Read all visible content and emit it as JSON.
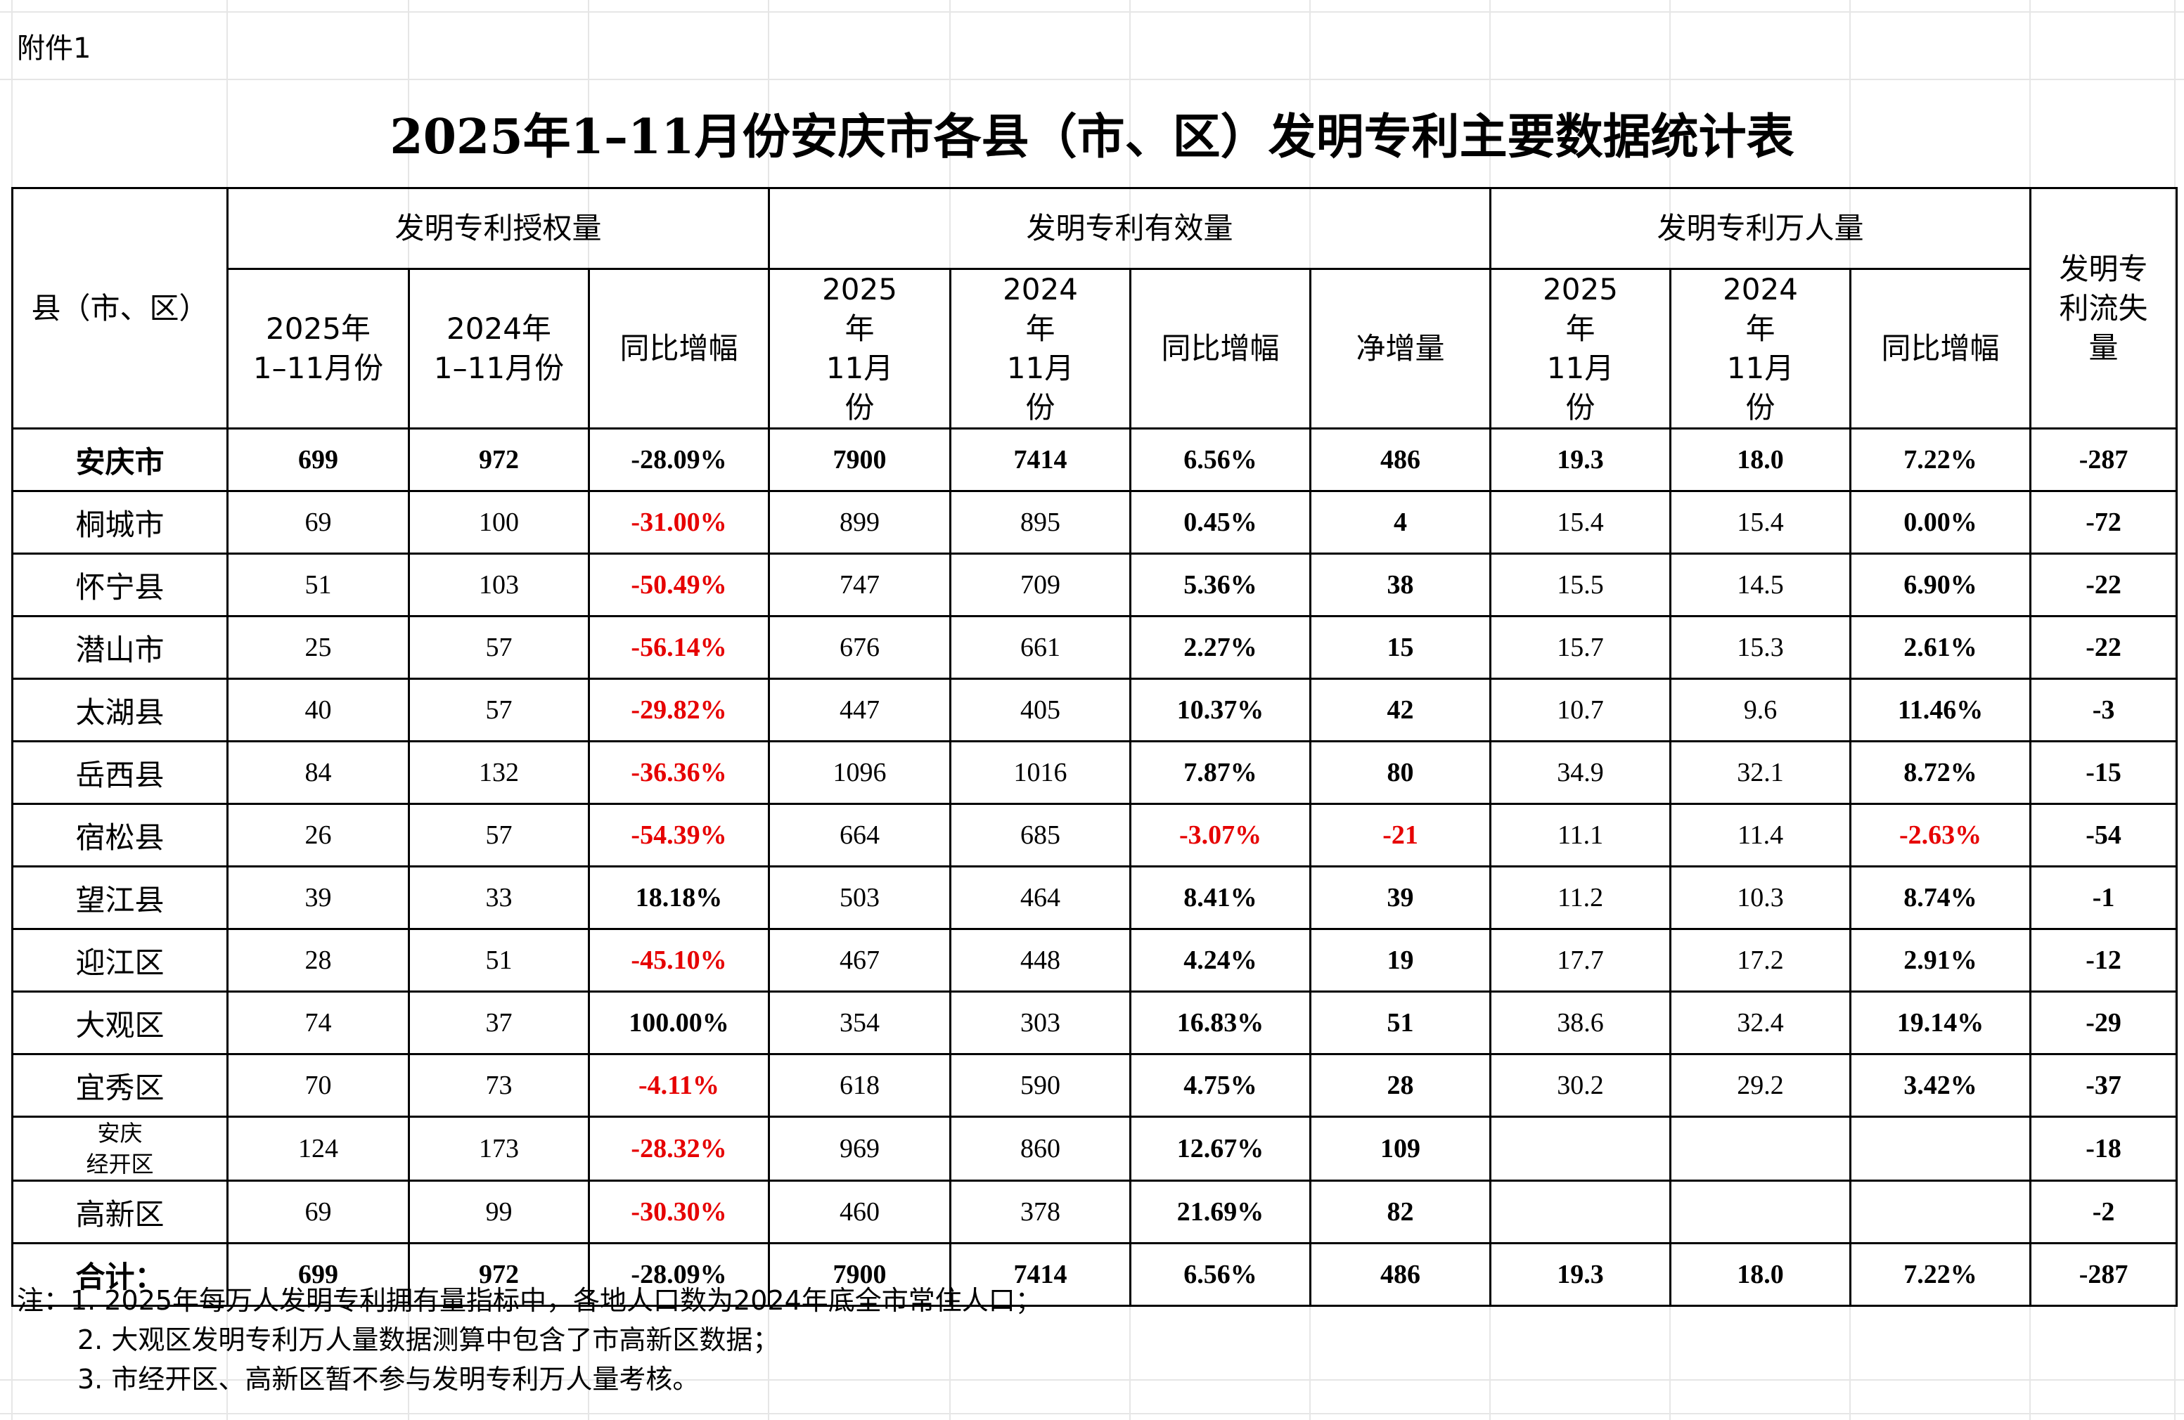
{
  "attachment_label": "附件1",
  "title": "2025年1–11月份安庆市各县（市、区）发明专利主要数据统计表",
  "headers": {
    "region": "县（市、区）",
    "group_grant": "发明专利授权量",
    "group_valid": "发明专利有效量",
    "group_per10k": "发明专利万人量",
    "loss": "发明专利流失量",
    "grant_2025": "2025年 1–11月份",
    "grant_2024": "2024年 1–11月份",
    "grant_yoy": "同比增幅",
    "valid_2025": "2025年 11月份",
    "valid_2024": "2024年 11月份",
    "valid_yoy": "同比增幅",
    "valid_net": "净增量",
    "per10k_2025": "2025年 11月份",
    "per10k_2024": "2024年 11月份",
    "per10k_yoy": "同比增幅"
  },
  "rows": [
    {
      "name": "安庆市",
      "g25": "699",
      "g24": "972",
      "gy": "-28.09%",
      "v25": "7900",
      "v24": "7414",
      "vy": "6.56%",
      "vn": "486",
      "p25": "19.3",
      "p24": "18.0",
      "py": "7.22%",
      "loss": "-287"
    },
    {
      "name": "桐城市",
      "g25": "69",
      "g24": "100",
      "gy": "-31.00%",
      "v25": "899",
      "v24": "895",
      "vy": "0.45%",
      "vn": "4",
      "p25": "15.4",
      "p24": "15.4",
      "py": "0.00%",
      "loss": "-72"
    },
    {
      "name": "怀宁县",
      "g25": "51",
      "g24": "103",
      "gy": "-50.49%",
      "v25": "747",
      "v24": "709",
      "vy": "5.36%",
      "vn": "38",
      "p25": "15.5",
      "p24": "14.5",
      "py": "6.90%",
      "loss": "-22"
    },
    {
      "name": "潜山市",
      "g25": "25",
      "g24": "57",
      "gy": "-56.14%",
      "v25": "676",
      "v24": "661",
      "vy": "2.27%",
      "vn": "15",
      "p25": "15.7",
      "p24": "15.3",
      "py": "2.61%",
      "loss": "-22"
    },
    {
      "name": "太湖县",
      "g25": "40",
      "g24": "57",
      "gy": "-29.82%",
      "v25": "447",
      "v24": "405",
      "vy": "10.37%",
      "vn": "42",
      "p25": "10.7",
      "p24": "9.6",
      "py": "11.46%",
      "loss": "-3"
    },
    {
      "name": "岳西县",
      "g25": "84",
      "g24": "132",
      "gy": "-36.36%",
      "v25": "1096",
      "v24": "1016",
      "vy": "7.87%",
      "vn": "80",
      "p25": "34.9",
      "p24": "32.1",
      "py": "8.72%",
      "loss": "-15"
    },
    {
      "name": "宿松县",
      "g25": "26",
      "g24": "57",
      "gy": "-54.39%",
      "v25": "664",
      "v24": "685",
      "vy": "-3.07%",
      "vn": "-21",
      "p25": "11.1",
      "p24": "11.4",
      "py": "-2.63%",
      "loss": "-54"
    },
    {
      "name": "望江县",
      "g25": "39",
      "g24": "33",
      "gy": "18.18%",
      "v25": "503",
      "v24": "464",
      "vy": "8.41%",
      "vn": "39",
      "p25": "11.2",
      "p24": "10.3",
      "py": "8.74%",
      "loss": "-1"
    },
    {
      "name": "迎江区",
      "g25": "28",
      "g24": "51",
      "gy": "-45.10%",
      "v25": "467",
      "v24": "448",
      "vy": "4.24%",
      "vn": "19",
      "p25": "17.7",
      "p24": "17.2",
      "py": "2.91%",
      "loss": "-12"
    },
    {
      "name": "大观区",
      "g25": "74",
      "g24": "37",
      "gy": "100.00%",
      "v25": "354",
      "v24": "303",
      "vy": "16.83%",
      "vn": "51",
      "p25": "38.6",
      "p24": "32.4",
      "py": "19.14%",
      "loss": "-29"
    },
    {
      "name": "宜秀区",
      "g25": "70",
      "g24": "73",
      "gy": "-4.11%",
      "v25": "618",
      "v24": "590",
      "vy": "4.75%",
      "vn": "28",
      "p25": "30.2",
      "p24": "29.2",
      "py": "3.42%",
      "loss": "-37"
    },
    {
      "name": "安庆 经开区",
      "g25": "124",
      "g24": "173",
      "gy": "-28.32%",
      "v25": "969",
      "v24": "860",
      "vy": "12.67%",
      "vn": "109",
      "p25": "",
      "p24": "",
      "py": "",
      "loss": "-18"
    },
    {
      "name": "高新区",
      "g25": "69",
      "g24": "99",
      "gy": "-30.30%",
      "v25": "460",
      "v24": "378",
      "vy": "21.69%",
      "vn": "82",
      "p25": "",
      "p24": "",
      "py": "",
      "loss": "-2"
    },
    {
      "name": "合计：",
      "g25": "699",
      "g24": "972",
      "gy": "-28.09%",
      "v25": "7900",
      "v24": "7414",
      "vy": "6.56%",
      "vn": "486",
      "p25": "19.3",
      "p24": "18.0",
      "py": "7.22%",
      "loss": "-287"
    }
  ],
  "notes": [
    "注：1. 2025年每万人发明专利拥有量指标中，各地人口数为2024年底全市常住人口；",
    "2. 大观区发明专利万人量数据测算中包含了市高新区数据；",
    "3. 市经开区、高新区暂不参与发明专利万人量考核。"
  ],
  "colors": {
    "negative": "#e60000",
    "grid": "#e6e6e6",
    "border": "#000000"
  }
}
